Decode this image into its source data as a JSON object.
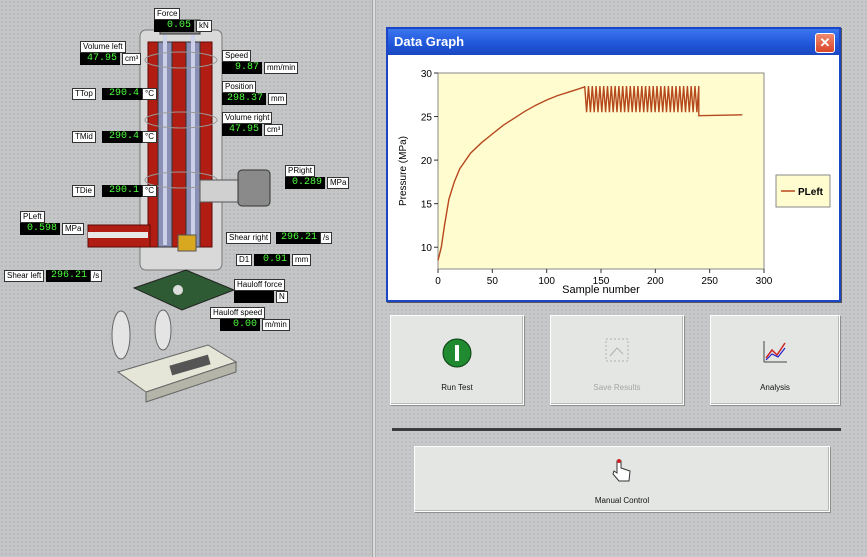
{
  "readouts": {
    "force": {
      "label": "Force",
      "value": "0.05",
      "unit": "kN"
    },
    "volume_left": {
      "label": "Volume left",
      "value": "47.95",
      "unit": "cm³"
    },
    "speed": {
      "label": "Speed",
      "value": "9.87",
      "unit": "mm/min"
    },
    "ttop": {
      "label": "TTop",
      "value": "290.4",
      "unit": "°C"
    },
    "position": {
      "label": "Position",
      "value": "298.37",
      "unit": "mm"
    },
    "volume_right": {
      "label": "Volume right",
      "value": "47.95",
      "unit": "cm³"
    },
    "tmid": {
      "label": "TMid",
      "value": "290.4",
      "unit": "°C"
    },
    "pright": {
      "label": "PRight",
      "value": "0.289",
      "unit": "MPa"
    },
    "tdie": {
      "label": "TDie",
      "value": "290.1",
      "unit": "°C"
    },
    "pleft": {
      "label": "PLeft",
      "value": "0.598",
      "unit": "MPa"
    },
    "shear_right": {
      "label": "Shear right",
      "value": "296.21",
      "unit": "/s"
    },
    "d1": {
      "label": "D1",
      "value": "0.91",
      "unit": "mm"
    },
    "shear_left": {
      "label": "Shear left",
      "value": "296.21",
      "unit": "/s"
    },
    "hauloff_force": {
      "label": "Hauloff force",
      "value": "",
      "unit": "N"
    },
    "hauloff_speed": {
      "label": "Hauloff speed",
      "value": "0.00",
      "unit": "m/min"
    }
  },
  "graph": {
    "title": "Data Graph",
    "close": "✕",
    "colors": {
      "plot_bg": "#fffcd0",
      "line": "#b5481c",
      "titlebar": "#1f55d8"
    }
  },
  "chart_data": {
    "type": "line",
    "xlabel": "Sample number",
    "ylabel": "Pressure (MPa)",
    "xlim": [
      0,
      300
    ],
    "ylim": [
      7.5,
      30
    ],
    "xticks": [
      0,
      50,
      100,
      150,
      200,
      250,
      300
    ],
    "yticks": [
      10,
      15,
      20,
      25,
      30
    ],
    "legend": {
      "position": "right",
      "entries": [
        "PLeft"
      ]
    },
    "series": [
      {
        "name": "PLeft",
        "x": [
          0,
          3,
          6,
          10,
          15,
          20,
          30,
          40,
          50,
          60,
          70,
          80,
          90,
          100,
          110,
          120,
          130,
          135
        ],
        "y": [
          8.5,
          10,
          12.5,
          15.5,
          17.5,
          19,
          20.8,
          22,
          23,
          24,
          24.8,
          25.6,
          26.3,
          26.9,
          27.4,
          27.8,
          28.2,
          28.4
        ]
      }
    ],
    "oscillation": {
      "x_start": 135,
      "x_end": 240,
      "low": 25.5,
      "high": 28.5,
      "cycles": 30
    },
    "tail": {
      "x": [
        240,
        280
      ],
      "y": [
        25.1,
        25.2
      ]
    }
  },
  "buttons": {
    "run_test": "Run Test",
    "save_results": "Save Results",
    "analysis": "Analysis",
    "manual_control": "Manual Control"
  }
}
